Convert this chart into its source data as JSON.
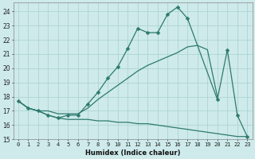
{
  "xlabel": "Humidex (Indice chaleur)",
  "background_color": "#ceeaea",
  "grid_color": "#aed4d4",
  "line_color": "#2d7a6e",
  "xlim": [
    -0.5,
    23.5
  ],
  "ylim": [
    15,
    24.6
  ],
  "yticks": [
    15,
    16,
    17,
    18,
    19,
    20,
    21,
    22,
    23,
    24
  ],
  "xticks": [
    0,
    1,
    2,
    3,
    4,
    5,
    6,
    7,
    8,
    9,
    10,
    11,
    12,
    13,
    14,
    15,
    16,
    17,
    18,
    19,
    20,
    21,
    22,
    23
  ],
  "line1_x": [
    0,
    1,
    2,
    3,
    4,
    5,
    6,
    7,
    8,
    9,
    10,
    11,
    12,
    13,
    14,
    15,
    16,
    17,
    20,
    21,
    22,
    23
  ],
  "line1_y": [
    17.7,
    17.2,
    17.0,
    16.7,
    16.5,
    16.7,
    16.7,
    17.5,
    18.3,
    19.3,
    20.1,
    21.4,
    22.8,
    22.5,
    22.5,
    23.8,
    24.3,
    23.5,
    17.8,
    21.3,
    16.7,
    15.2
  ],
  "line2_x": [
    0,
    1,
    2,
    3,
    4,
    5,
    6,
    7,
    8,
    9,
    10,
    11,
    12,
    13,
    14,
    15,
    16,
    17,
    18,
    19,
    20,
    21,
    22,
    23
  ],
  "line2_y": [
    17.7,
    17.2,
    17.0,
    17.0,
    16.8,
    16.8,
    16.8,
    17.2,
    17.8,
    18.3,
    18.8,
    19.3,
    19.8,
    20.2,
    20.5,
    20.8,
    21.1,
    21.5,
    21.6,
    21.3,
    18.0,
    null,
    null,
    null
  ],
  "line3_x": [
    0,
    1,
    2,
    3,
    4,
    5,
    6,
    7,
    8,
    9,
    10,
    11,
    12,
    13,
    14,
    15,
    16,
    17,
    18,
    19,
    20,
    21,
    22,
    23
  ],
  "line3_y": [
    17.7,
    17.2,
    17.0,
    16.7,
    16.5,
    16.4,
    16.4,
    16.4,
    16.3,
    16.3,
    16.2,
    16.2,
    16.1,
    16.1,
    16.0,
    15.9,
    15.8,
    15.7,
    15.6,
    15.5,
    15.4,
    15.3,
    15.2,
    15.2
  ]
}
